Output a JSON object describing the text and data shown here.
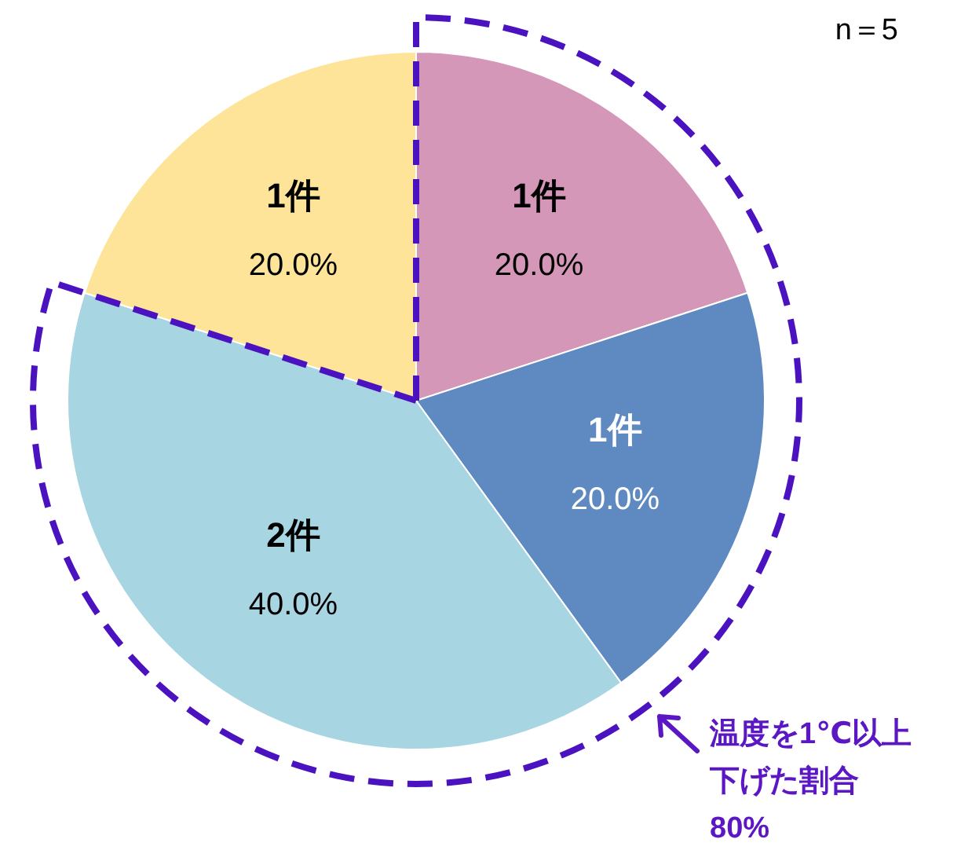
{
  "chart_data": {
    "type": "pie",
    "categories": [
      "1件",
      "1件",
      "2件",
      "1件"
    ],
    "values": [
      20,
      20,
      40,
      20
    ],
    "value_labels": [
      "20.0%",
      "20.0%",
      "40.0%",
      "20.0%"
    ],
    "colors": [
      "#d497b8",
      "#5f8ac1",
      "#a8d5e2",
      "#fee499"
    ],
    "annotations": [
      "n＝5",
      "温度を1℃以上",
      "下げた割合",
      "80%"
    ]
  }
}
